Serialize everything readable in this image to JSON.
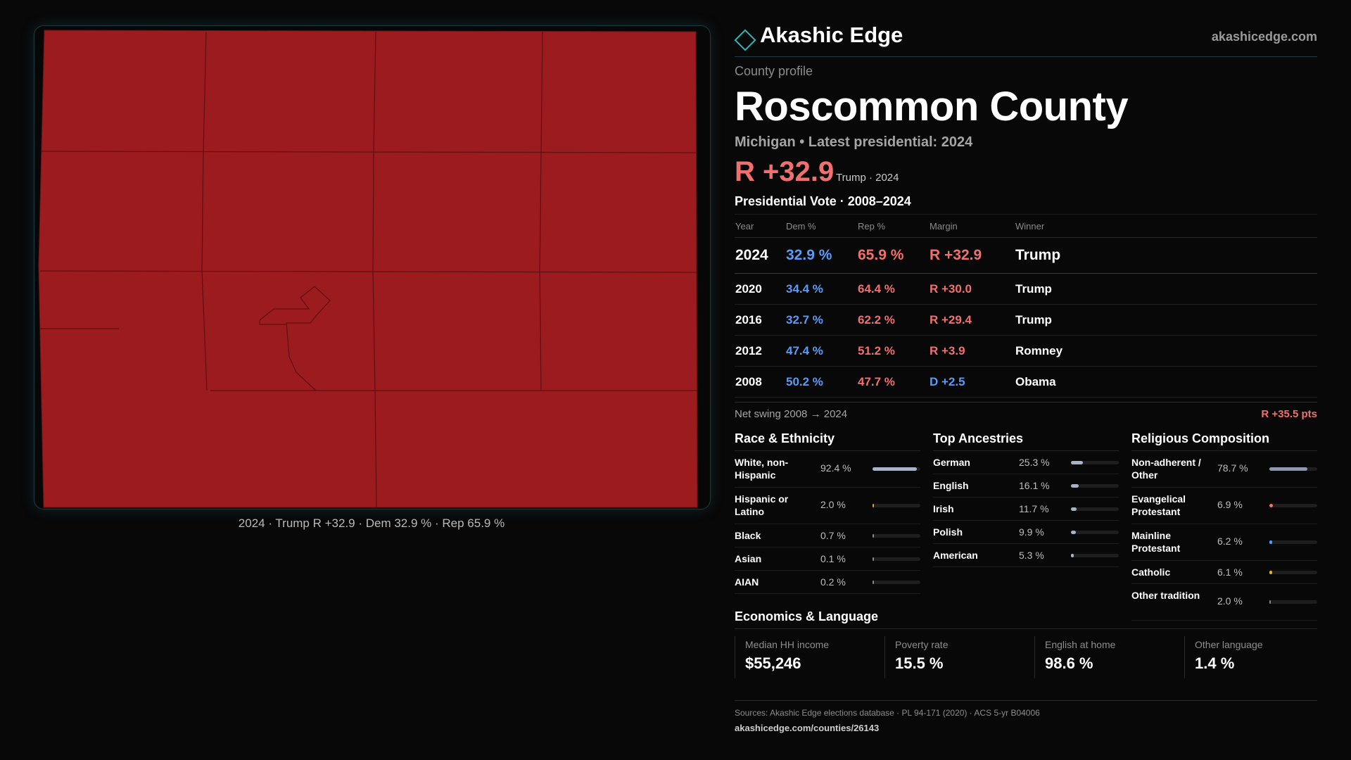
{
  "map": {
    "caption": "2024 · Trump R +32.9 · Dem 32.9 % · Rep 65.9 %",
    "fill_color": "#9b1b1f",
    "line_color": "#5e1013"
  },
  "brand": {
    "name": "Akashic Edge",
    "url": "akashicedge.com",
    "logo_icon": "diamond-logo-icon",
    "accent": "#2fb5b8"
  },
  "header": {
    "kicker": "County profile",
    "title": "Roscommon County",
    "subline": "Michigan • Latest presidential: 2024",
    "margin": "R +32.9",
    "margin_note": "Trump · 2024"
  },
  "vote": {
    "title": "Presidential Vote · 2008–2024",
    "columns": [
      "Year",
      "Dem %",
      "Rep %",
      "Margin",
      "Winner"
    ],
    "rows": [
      {
        "year": "2024",
        "dem": "32.9 %",
        "rep": "65.9 %",
        "margin": "R +32.9",
        "winner": "Trump"
      },
      {
        "year": "2020",
        "dem": "34.4 %",
        "rep": "64.4 %",
        "margin": "R +30.0",
        "winner": "Trump"
      },
      {
        "year": "2016",
        "dem": "32.7 %",
        "rep": "62.2 %",
        "margin": "R +29.4",
        "winner": "Trump"
      },
      {
        "year": "2012",
        "dem": "47.4 %",
        "rep": "51.2 %",
        "margin": "R +3.9",
        "winner": "Romney"
      },
      {
        "year": "2008",
        "dem": "50.2 %",
        "rep": "47.7 %",
        "margin": "D +2.5",
        "winner": "Obama"
      }
    ],
    "swing_label": "Net swing 2008 → 2024",
    "swing_value": "R +35.5 pts"
  },
  "race": {
    "title": "Race & Ethnicity",
    "items": [
      {
        "label": "White, non-Hispanic",
        "value": "92.4 %",
        "fraction": 0.924,
        "color": "#a9b3c7"
      },
      {
        "label": "Hispanic or Latino",
        "value": "2.0 %",
        "fraction": 0.02,
        "color": "#e0a030"
      },
      {
        "label": "Black",
        "value": "0.7 %",
        "fraction": 0.007,
        "color": "#8a8a8a"
      },
      {
        "label": "Asian",
        "value": "0.1 %",
        "fraction": 0.001,
        "color": "#8a8a8a"
      },
      {
        "label": "AIAN",
        "value": "0.2 %",
        "fraction": 0.002,
        "color": "#8a8a8a"
      }
    ]
  },
  "ancestry": {
    "title": "Top Ancestries",
    "items": [
      {
        "label": "German",
        "value": "25.3 %",
        "fraction": 0.253,
        "color": "#a9b3c7"
      },
      {
        "label": "English",
        "value": "16.1 %",
        "fraction": 0.161,
        "color": "#a9b3c7"
      },
      {
        "label": "Irish",
        "value": "11.7 %",
        "fraction": 0.117,
        "color": "#a9b3c7"
      },
      {
        "label": "Polish",
        "value": "9.9 %",
        "fraction": 0.099,
        "color": "#a9b3c7"
      },
      {
        "label": "American",
        "value": "5.3 %",
        "fraction": 0.053,
        "color": "#a9b3c7"
      }
    ]
  },
  "religion": {
    "title": "Religious Composition",
    "items": [
      {
        "label": "Non-adherent / Other",
        "value": "78.7 %",
        "fraction": 0.787,
        "color": "#8f98aa"
      },
      {
        "label": "Evangelical Protestant",
        "value": "6.9 %",
        "fraction": 0.069,
        "color": "#f0706e"
      },
      {
        "label": "Mainline Protestant",
        "value": "6.2 %",
        "fraction": 0.062,
        "color": "#5b9bf5"
      },
      {
        "label": "Catholic",
        "value": "6.1 %",
        "fraction": 0.061,
        "color": "#e0b030"
      },
      {
        "label": "Other tradition",
        "value": "2.0 %",
        "fraction": 0.02,
        "color": "#8a8a8a"
      }
    ]
  },
  "economics": {
    "title": "Economics & Language",
    "items": [
      {
        "label": "Median HH income",
        "value": "$55,246"
      },
      {
        "label": "Poverty rate",
        "value": "15.5 %"
      },
      {
        "label": "English at home",
        "value": "98.6 %"
      },
      {
        "label": "Other language",
        "value": "1.4 %"
      }
    ]
  },
  "sources": {
    "text": "Sources: Akashic Edge elections database · PL 94-171 (2020) · ACS 5-yr B04006",
    "url": "akashicedge.com/counties/26143"
  }
}
